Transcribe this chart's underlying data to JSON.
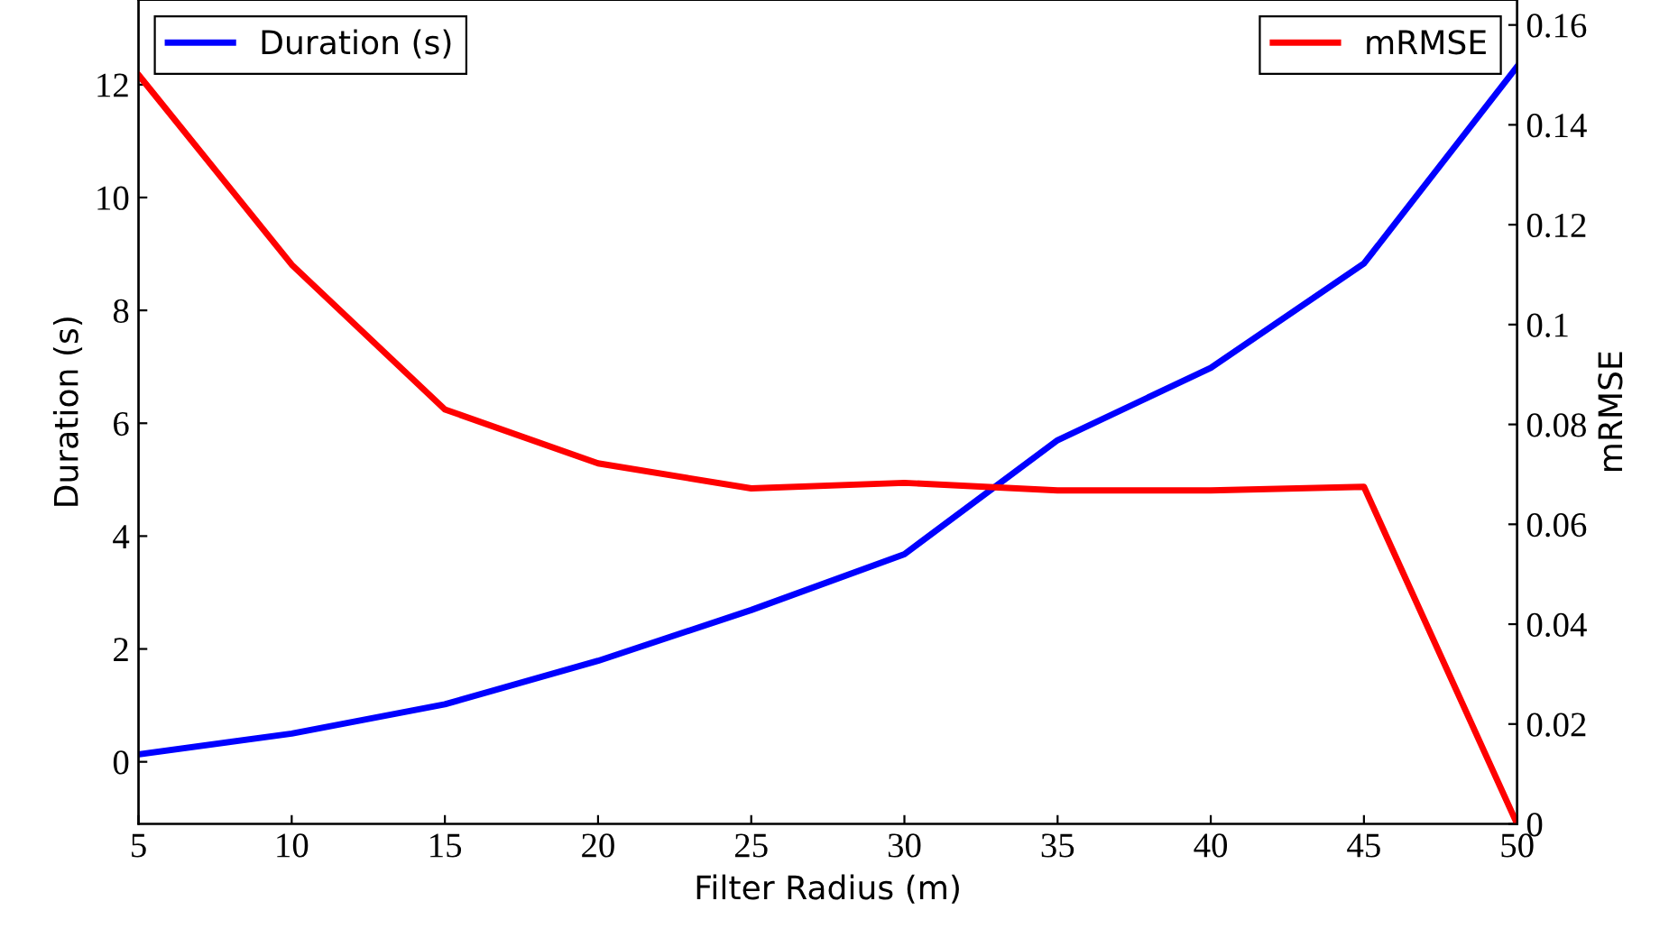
{
  "chart_data": {
    "type": "line",
    "xlabel": "Filter Radius (m)",
    "ylabel": "Duration (s)",
    "y2label": "mRMSE",
    "x": [
      5,
      10,
      15,
      20,
      25,
      30,
      35,
      40,
      45,
      50
    ],
    "series": [
      {
        "name": "Duration (s)",
        "color": "#0000ff",
        "values": [
          0.13,
          0.5,
          1.02,
          1.79,
          2.69,
          3.68,
          5.7,
          6.98,
          8.83,
          12.32
        ]
      },
      {
        "name": "mRMSE",
        "color": "#ff0000",
        "axis": "y2",
        "values": [
          0.15,
          0.112,
          0.083,
          0.0722,
          0.0672,
          0.0683,
          0.0668,
          0.0668,
          0.0675,
          0
        ]
      }
    ],
    "xlim": [
      5,
      50
    ],
    "xticks": [
      5,
      10,
      15,
      20,
      25,
      30,
      35,
      40,
      45,
      50
    ],
    "ylim": [
      -1.1,
      13.5
    ],
    "yticks": [
      0,
      2,
      4,
      6,
      8,
      10,
      12
    ],
    "y2lim": [
      0,
      0.165
    ],
    "y2ticks": [
      0,
      0.02,
      0.04,
      0.06,
      0.08,
      0.1,
      0.12,
      0.14,
      0.16
    ],
    "legend": "top",
    "grid": false,
    "marker": "none",
    "line_style": "solid"
  }
}
